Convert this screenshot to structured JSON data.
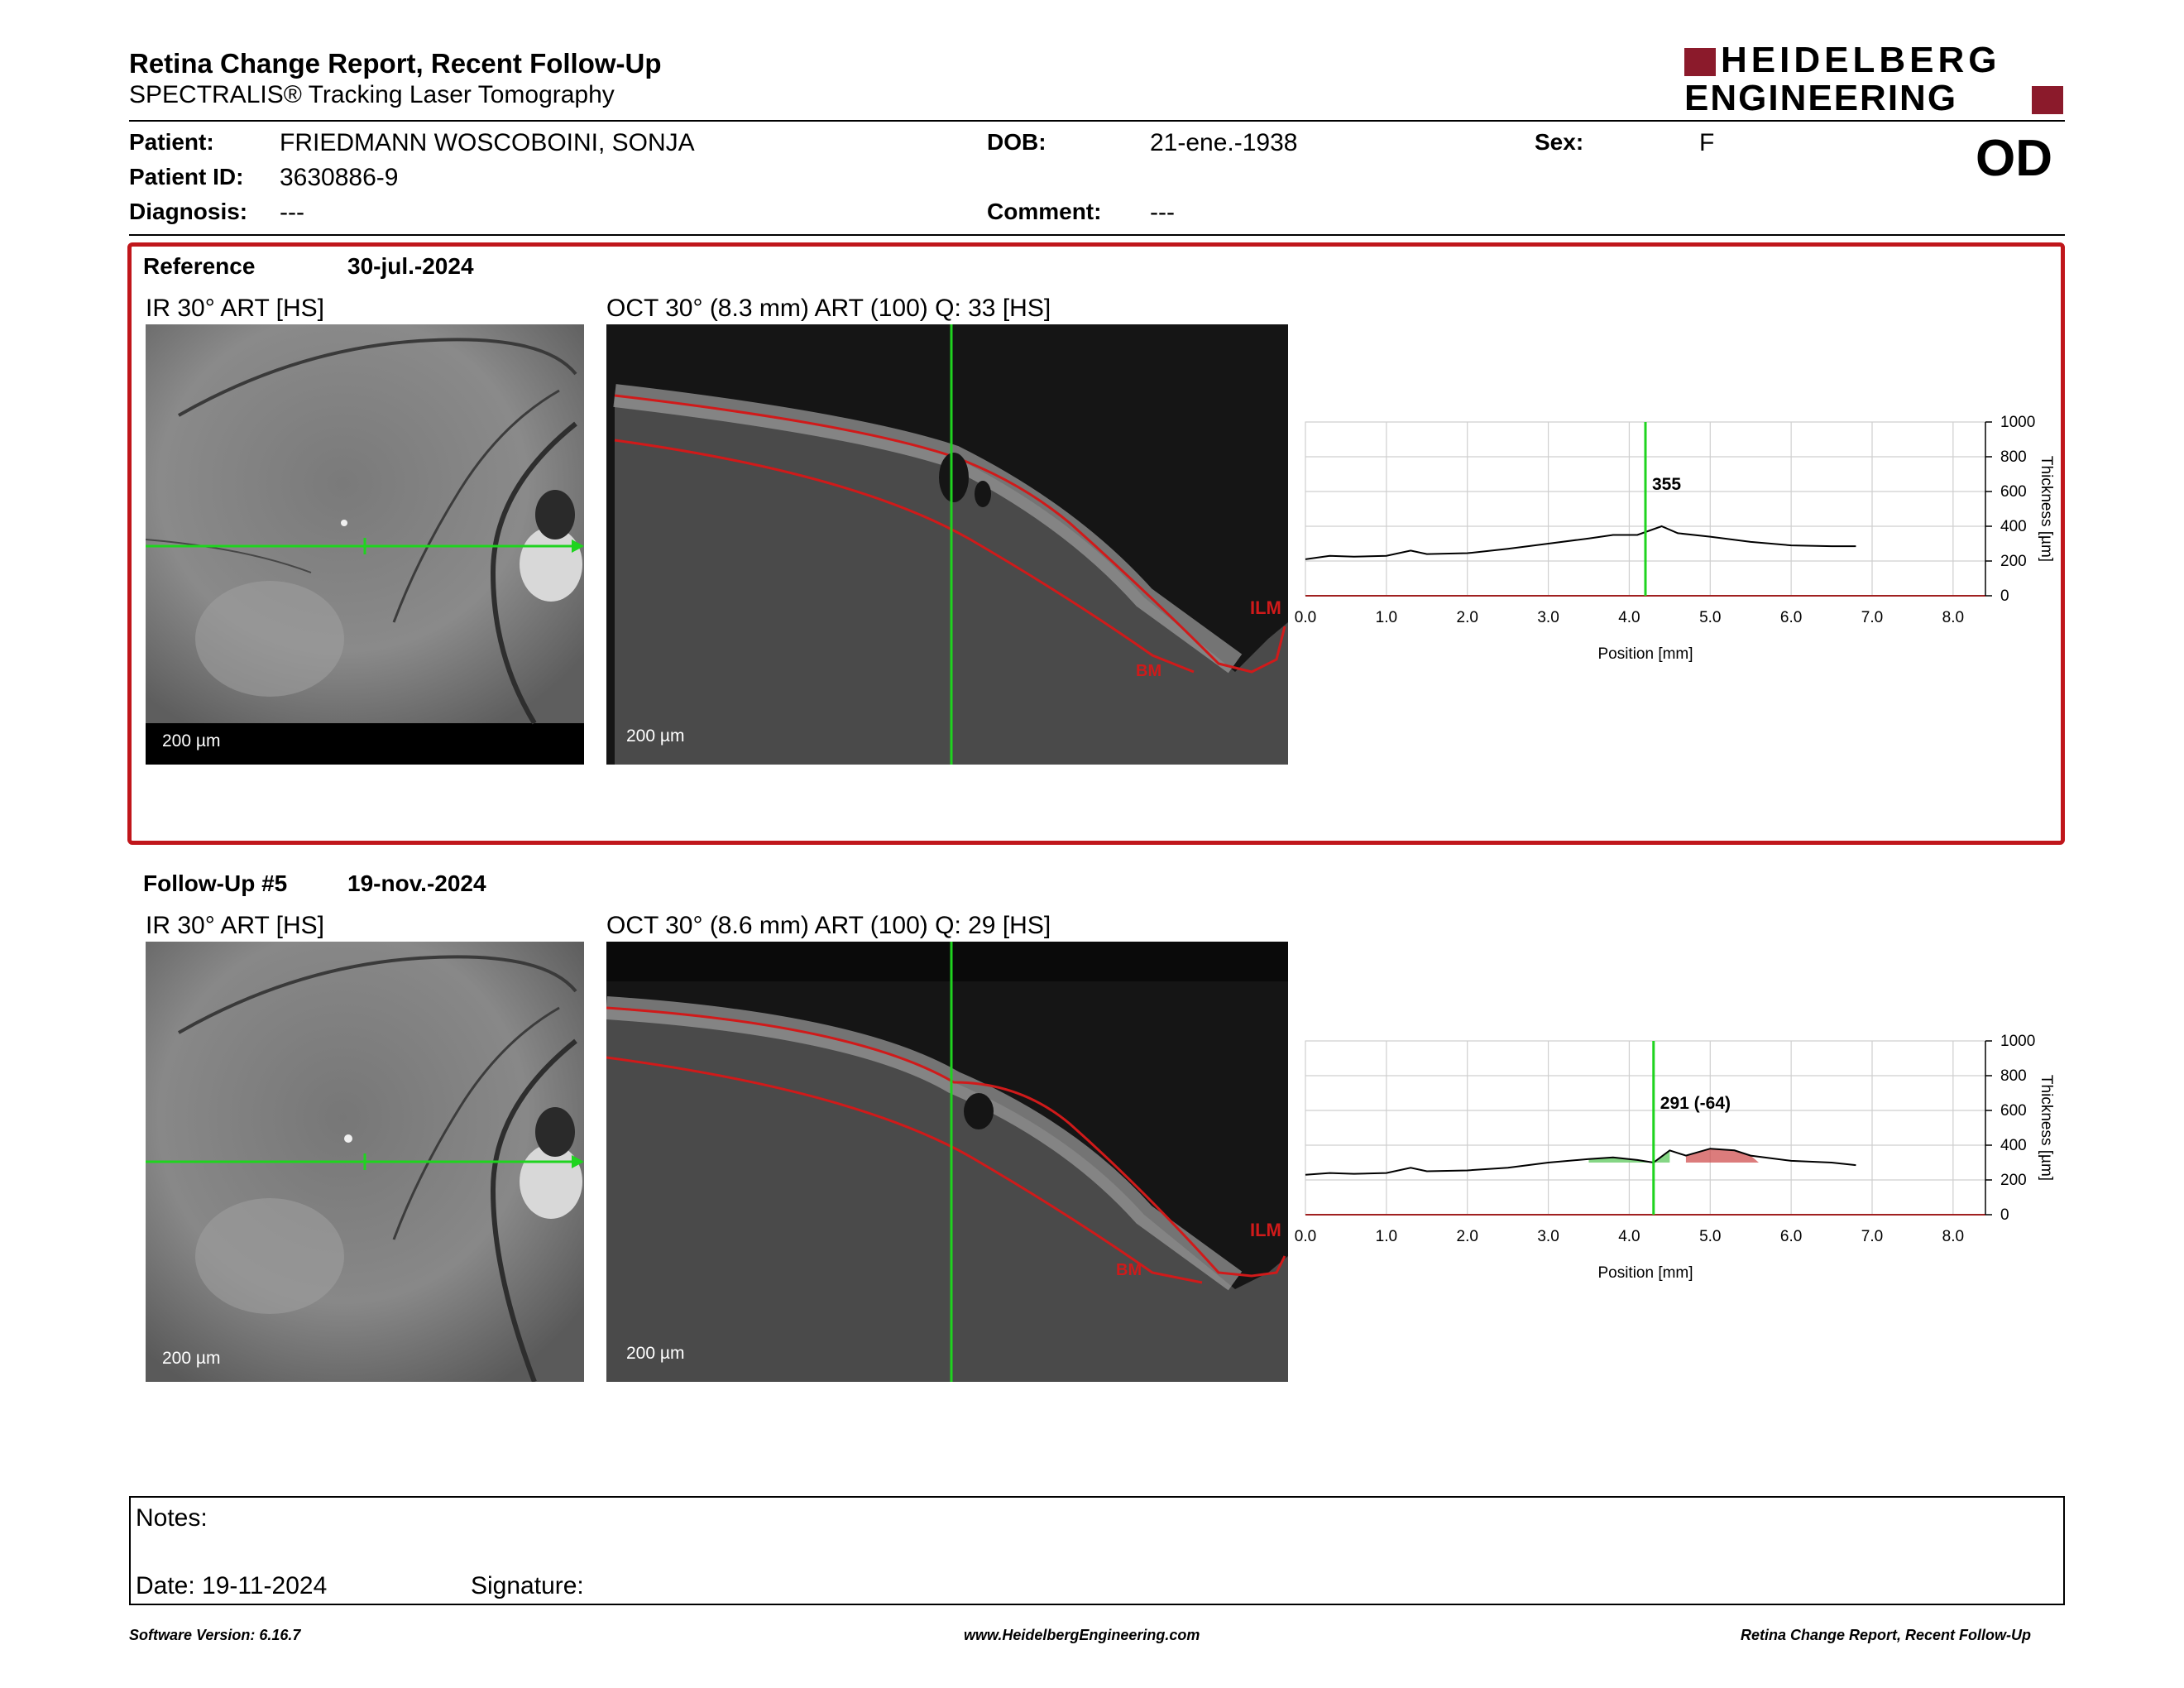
{
  "header": {
    "title": "Retina Change Report, Recent Follow-Up",
    "subtitle": "SPECTRALIS® Tracking Laser Tomography",
    "brand_line1": "HEIDELBERG",
    "brand_line2": "ENGINEERING",
    "eye": "OD",
    "brand_color": "#8b1a2b"
  },
  "patient": {
    "patient_label": "Patient:",
    "patient_value": "FRIEDMANN WOSCOBOINI,  SONJA",
    "id_label": "Patient ID:",
    "id_value": "3630886-9",
    "diagnosis_label": "Diagnosis:",
    "diagnosis_value": "---",
    "dob_label": "DOB:",
    "dob_value": "21-ene.-1938",
    "comment_label": "Comment:",
    "comment_value": "---",
    "sex_label": "Sex:",
    "sex_value": "F"
  },
  "reference": {
    "label": "Reference",
    "date": "30-jul.-2024",
    "ir_title": "IR 30° ART [HS]",
    "oct_title": "OCT 30° (8.3 mm) ART (100) Q: 33 [HS]",
    "scale_ir": "200 µm",
    "scale_oct": "200 µm",
    "ilm_label": "ILM",
    "bm_label": "BM",
    "border_color": "#c0161b"
  },
  "followup": {
    "label": "Follow-Up #5",
    "date": "19-nov.-2024",
    "ir_title": "IR 30° ART [HS]",
    "oct_title": "OCT 30° (8.6 mm) ART (100) Q: 29 [HS]",
    "scale_ir": "200 µm",
    "scale_oct": "200 µm",
    "ilm_label": "ILM",
    "bm_label": "BM"
  },
  "chart_data": [
    {
      "type": "line",
      "title": "",
      "xlabel": "Position [mm]",
      "ylabel": "Thickness [µm]",
      "xlim": [
        0,
        8.4
      ],
      "ylim": [
        0,
        1000
      ],
      "x_ticks": [
        "0.0",
        "1.0",
        "2.0",
        "3.0",
        "4.0",
        "5.0",
        "6.0",
        "7.0",
        "8.0"
      ],
      "y_ticks": [
        "0",
        "200",
        "400",
        "600",
        "800",
        "1000"
      ],
      "grid": true,
      "cursor_x": 4.2,
      "cursor_label": "355",
      "series": [
        {
          "x": [
            0.0,
            0.3,
            0.6,
            1.0,
            1.3,
            1.5,
            2.0,
            2.5,
            3.0,
            3.5,
            3.8,
            4.1,
            4.25,
            4.4,
            4.6,
            5.0,
            5.5,
            6.0,
            6.5,
            6.8
          ],
          "values": [
            210,
            230,
            225,
            230,
            260,
            240,
            245,
            270,
            300,
            330,
            350,
            350,
            375,
            400,
            360,
            340,
            310,
            290,
            285,
            285
          ]
        }
      ]
    },
    {
      "type": "line",
      "title": "",
      "xlabel": "Position [mm]",
      "ylabel": "Thickness [µm]",
      "xlim": [
        0,
        8.4
      ],
      "ylim": [
        0,
        1000
      ],
      "x_ticks": [
        "0.0",
        "1.0",
        "2.0",
        "3.0",
        "4.0",
        "5.0",
        "6.0",
        "7.0",
        "8.0"
      ],
      "y_ticks": [
        "0",
        "200",
        "400",
        "600",
        "800",
        "1000"
      ],
      "grid": true,
      "cursor_x": 4.3,
      "cursor_label": "291 (-64)",
      "series": [
        {
          "x": [
            0.0,
            0.3,
            0.6,
            1.0,
            1.3,
            1.5,
            2.0,
            2.5,
            3.0,
            3.5,
            3.8,
            4.1,
            4.3,
            4.5,
            4.7,
            5.0,
            5.3,
            5.5,
            6.0,
            6.5,
            6.8
          ],
          "values": [
            230,
            240,
            235,
            240,
            270,
            250,
            255,
            270,
            300,
            320,
            330,
            315,
            300,
            370,
            340,
            380,
            370,
            340,
            310,
            300,
            285
          ]
        }
      ],
      "increase_color": "#66cc66",
      "decrease_color": "#d05050"
    }
  ],
  "notes": {
    "notes_label": "Notes:",
    "date_label": "Date: 19-11-2024",
    "signature_label": "Signature:"
  },
  "footer": {
    "software": "Software Version: 6.16.7",
    "url": "www.HeidelbergEngineering.com",
    "report_name": "Retina Change Report, Recent Follow-Up"
  }
}
